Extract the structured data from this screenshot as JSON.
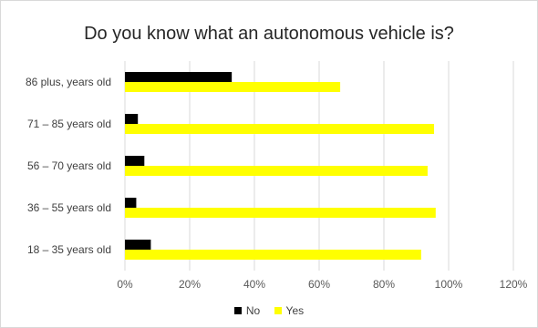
{
  "chart_data": {
    "type": "bar",
    "orientation": "horizontal",
    "title": "Do you know what an autonomous vehicle is?",
    "categories": [
      "86 plus, years old",
      "71 – 85 years old",
      "56 – 70 years old",
      "36 – 55 years old",
      "18 – 35 years old"
    ],
    "series": [
      {
        "name": "No",
        "color": "#000000",
        "values": [
          0.33,
          0.04,
          0.06,
          0.035,
          0.08
        ]
      },
      {
        "name": "Yes",
        "color": "#ffff00",
        "values": [
          0.665,
          0.955,
          0.935,
          0.96,
          0.915
        ]
      }
    ],
    "xticks": [
      "0%",
      "20%",
      "40%",
      "60%",
      "80%",
      "100%",
      "120%"
    ],
    "xlim": [
      0,
      1.2
    ],
    "grid": true,
    "legend": "bottom"
  }
}
